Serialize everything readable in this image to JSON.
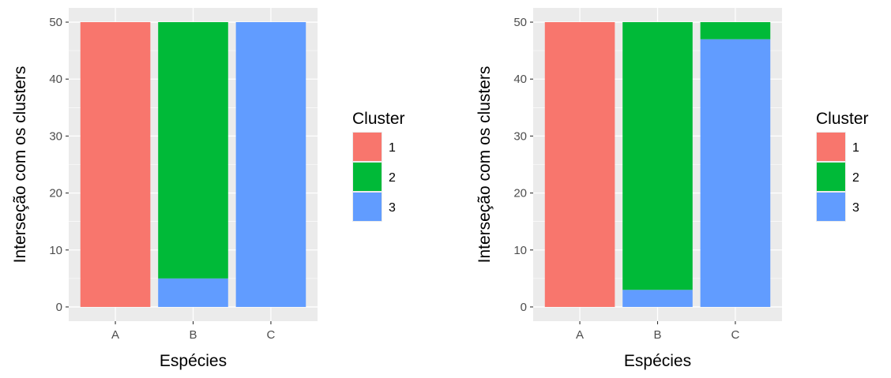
{
  "colors": {
    "panel_background": "#ebebeb",
    "grid_major": "#ffffff",
    "tick": "#333333",
    "cluster_1": "#F8766D",
    "cluster_2": "#00BA38",
    "cluster_3": "#619CFF"
  },
  "chart_data": [
    {
      "type": "bar",
      "stacked": true,
      "categories": [
        "A",
        "B",
        "C"
      ],
      "series": [
        {
          "name": "1",
          "values": [
            50,
            0,
            0
          ]
        },
        {
          "name": "2",
          "values": [
            0,
            45,
            0
          ]
        },
        {
          "name": "3",
          "values": [
            0,
            5,
            50
          ]
        }
      ],
      "xlabel": "Espécies",
      "ylabel": "Interseção com os clusters",
      "ylim": [
        0,
        50
      ],
      "yticks": [
        0,
        10,
        20,
        30,
        40,
        50
      ],
      "grid": true,
      "legend": {
        "title": "Cluster",
        "position": "right"
      }
    },
    {
      "type": "bar",
      "stacked": true,
      "categories": [
        "A",
        "B",
        "C"
      ],
      "series": [
        {
          "name": "1",
          "values": [
            50,
            0,
            0
          ]
        },
        {
          "name": "2",
          "values": [
            0,
            47,
            3
          ]
        },
        {
          "name": "3",
          "values": [
            0,
            3,
            47
          ]
        }
      ],
      "xlabel": "Espécies",
      "ylabel": "Interseção com os clusters",
      "ylim": [
        0,
        50
      ],
      "yticks": [
        0,
        10,
        20,
        30,
        40,
        50
      ],
      "grid": true,
      "legend": {
        "title": "Cluster",
        "position": "right"
      }
    }
  ]
}
